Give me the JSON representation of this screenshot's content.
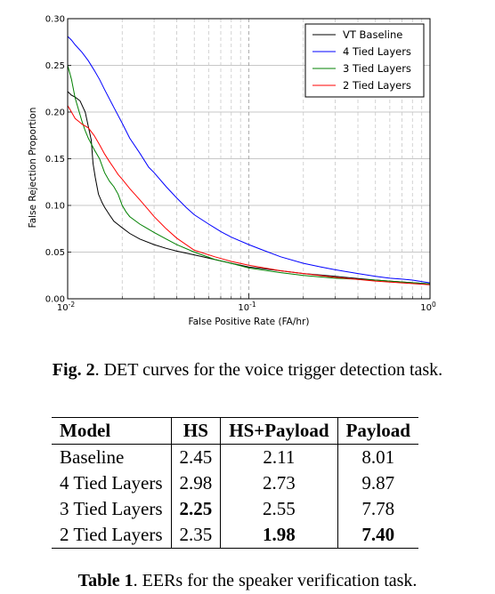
{
  "chart_data": {
    "type": "line",
    "xscale": "log",
    "xlim": [
      0.01,
      1.0
    ],
    "ylim": [
      0.0,
      0.3
    ],
    "xlabel": "False Positive Rate (FA/hr)",
    "ylabel": "False Rejection Proportion",
    "x_ticks": [
      {
        "value": 0.01,
        "base": "10",
        "exp": "-2"
      },
      {
        "value": 0.1,
        "base": "10",
        "exp": "-1"
      },
      {
        "value": 1.0,
        "base": "10",
        "exp": "0"
      }
    ],
    "y_ticks": [
      {
        "value": 0.0,
        "label": "0.00"
      },
      {
        "value": 0.05,
        "label": "0.05"
      },
      {
        "value": 0.1,
        "label": "0.10"
      },
      {
        "value": 0.15,
        "label": "0.15"
      },
      {
        "value": 0.2,
        "label": "0.20"
      },
      {
        "value": 0.25,
        "label": "0.25"
      },
      {
        "value": 0.3,
        "label": "0.30"
      }
    ],
    "grid": true,
    "legend_position": "top-right",
    "series": [
      {
        "name": "VT Baseline",
        "color": "#000000",
        "x": [
          0.01,
          0.0105,
          0.011,
          0.0117,
          0.0125,
          0.0135,
          0.0138,
          0.0142,
          0.0148,
          0.0155,
          0.016,
          0.017,
          0.018,
          0.02,
          0.022,
          0.025,
          0.03,
          0.035,
          0.04,
          0.05,
          0.065,
          0.08,
          0.1,
          0.15,
          0.2,
          0.3,
          0.5,
          0.7,
          1.0
        ],
        "y": [
          0.222,
          0.218,
          0.216,
          0.212,
          0.2,
          0.17,
          0.145,
          0.13,
          0.112,
          0.103,
          0.098,
          0.09,
          0.083,
          0.076,
          0.07,
          0.064,
          0.058,
          0.054,
          0.051,
          0.047,
          0.042,
          0.038,
          0.034,
          0.03,
          0.027,
          0.024,
          0.02,
          0.018,
          0.016
        ]
      },
      {
        "name": "4 Tied Layers",
        "color": "#0000ff",
        "x": [
          0.01,
          0.0105,
          0.011,
          0.012,
          0.013,
          0.014,
          0.015,
          0.016,
          0.018,
          0.02,
          0.022,
          0.025,
          0.028,
          0.03,
          0.035,
          0.04,
          0.045,
          0.05,
          0.06,
          0.07,
          0.08,
          0.1,
          0.12,
          0.15,
          0.2,
          0.25,
          0.3,
          0.4,
          0.5,
          0.6,
          0.7,
          0.8,
          1.0
        ],
        "y": [
          0.281,
          0.277,
          0.272,
          0.264,
          0.255,
          0.245,
          0.235,
          0.224,
          0.205,
          0.188,
          0.172,
          0.156,
          0.141,
          0.135,
          0.12,
          0.108,
          0.098,
          0.09,
          0.08,
          0.072,
          0.066,
          0.058,
          0.052,
          0.045,
          0.038,
          0.034,
          0.031,
          0.027,
          0.024,
          0.022,
          0.021,
          0.02,
          0.017
        ]
      },
      {
        "name": "3 Tied Layers",
        "color": "#008000",
        "x": [
          0.01,
          0.0105,
          0.011,
          0.012,
          0.0125,
          0.013,
          0.014,
          0.015,
          0.016,
          0.017,
          0.018,
          0.019,
          0.02,
          0.021,
          0.022,
          0.025,
          0.03,
          0.035,
          0.04,
          0.05,
          0.065,
          0.08,
          0.1,
          0.15,
          0.2,
          0.3,
          0.5,
          0.7,
          1.0
        ],
        "y": [
          0.25,
          0.235,
          0.215,
          0.19,
          0.18,
          0.172,
          0.16,
          0.15,
          0.135,
          0.126,
          0.12,
          0.112,
          0.1,
          0.093,
          0.088,
          0.08,
          0.071,
          0.064,
          0.058,
          0.05,
          0.042,
          0.038,
          0.033,
          0.028,
          0.025,
          0.022,
          0.02,
          0.018,
          0.016
        ]
      },
      {
        "name": "2 Tied Layers",
        "color": "#ff0000",
        "x": [
          0.01,
          0.0105,
          0.011,
          0.0115,
          0.012,
          0.013,
          0.014,
          0.015,
          0.016,
          0.017,
          0.018,
          0.019,
          0.02,
          0.022,
          0.025,
          0.028,
          0.03,
          0.035,
          0.04,
          0.05,
          0.065,
          0.08,
          0.1,
          0.15,
          0.2,
          0.3,
          0.5,
          0.7,
          1.0
        ],
        "y": [
          0.207,
          0.2,
          0.193,
          0.19,
          0.187,
          0.183,
          0.175,
          0.165,
          0.155,
          0.147,
          0.14,
          0.133,
          0.128,
          0.118,
          0.106,
          0.095,
          0.088,
          0.075,
          0.065,
          0.052,
          0.045,
          0.04,
          0.036,
          0.03,
          0.027,
          0.023,
          0.019,
          0.017,
          0.015
        ]
      }
    ]
  },
  "figure_caption": {
    "label": "Fig. 2",
    "text": ". DET curves for the voice trigger detection task."
  },
  "table": {
    "headers": [
      "Model",
      "HS",
      "HS+Payload",
      "Payload"
    ],
    "rows": [
      {
        "model": "Baseline",
        "hs": "2.45",
        "hs_payload": "2.11",
        "payload": "8.01"
      },
      {
        "model": "4 Tied Layers",
        "hs": "2.98",
        "hs_payload": "2.73",
        "payload": "9.87"
      },
      {
        "model": "3 Tied Layers",
        "hs": "2.25",
        "hs_payload": "2.55",
        "payload": "7.78"
      },
      {
        "model": "2 Tied Layers",
        "hs": "2.35",
        "hs_payload": "1.98",
        "payload": "7.40"
      }
    ],
    "caption_label": "Table 1",
    "caption_text": ". EERs for the speaker verification task."
  }
}
